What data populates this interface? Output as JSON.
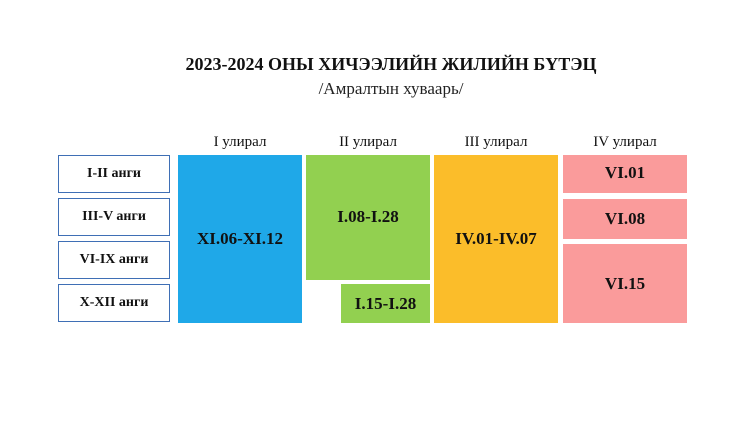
{
  "header": {
    "title": "2023-2024 ОНЫ ХИЧЭЭЛИЙН ЖИЛИЙН БҮТЭЦ",
    "subtitle": "/Амралтын хуваарь/"
  },
  "semesters": [
    "I улирал",
    "II улирал",
    "III улирал",
    "IV улирал"
  ],
  "grades": [
    "I-II анги",
    "III-V анги",
    "VI-IX анги",
    "X-XII анги"
  ],
  "breaks": {
    "semester_1": [
      "XI.06-XI.12"
    ],
    "semester_2": [
      "I.08-I.28",
      "I.15-I.28"
    ],
    "semester_3": [
      "IV.01-IV.07"
    ],
    "semester_4": [
      "VI.01",
      "VI.08",
      "VI.15"
    ]
  }
}
